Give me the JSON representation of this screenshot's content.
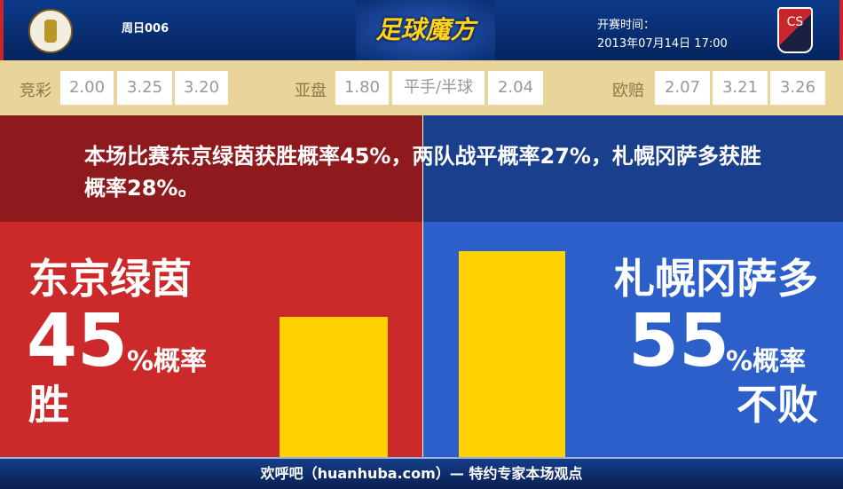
{
  "header": {
    "match_no": "周日006",
    "brand": "足球魔方",
    "time_label": "开赛时间：",
    "time_value": "2013年07月14日 17:00",
    "away_logo_text": "CS"
  },
  "odds": {
    "jingcai": {
      "label": "竞彩",
      "values": [
        "2.00",
        "3.25",
        "3.20"
      ]
    },
    "yapan": {
      "label": "亚盘",
      "values": [
        "1.80",
        "平手/半球",
        "2.04"
      ]
    },
    "oupei": {
      "label": "欧赔",
      "values": [
        "2.07",
        "3.21",
        "3.26"
      ]
    }
  },
  "summary": "本场比赛东京绿茵获胜概率45%，两队战平概率27%，札幌冈萨多获胜概率28%。",
  "home": {
    "name": "东京绿茵",
    "percent": "45",
    "percent_label": "%概率",
    "result": "胜",
    "bar_value": 45
  },
  "away": {
    "name": "札幌冈萨多",
    "percent": "55",
    "percent_label": "%概率",
    "result": "不败",
    "bar_value": 55
  },
  "colors": {
    "home": "#cc2a2a",
    "away": "#2c5fca",
    "bar": "#ffd200"
  },
  "footer": "欢呼吧（huanhuba.com）— 特约专家本场观点"
}
